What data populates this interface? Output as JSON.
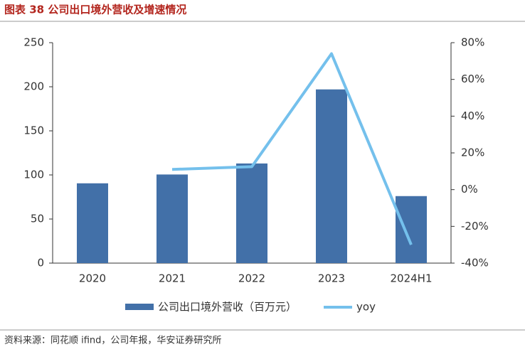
{
  "chart_data": {
    "type": "bar",
    "title": "图表 38 公司出口境外营收及增速情况",
    "source": "资料来源：同花顺 ifind，公司年报，华安证券研究所",
    "categories": [
      "2020",
      "2021",
      "2022",
      "2023",
      "2024H1"
    ],
    "series": [
      {
        "name": "公司出口境外营收（百万元）",
        "type": "bar",
        "color": "#4270a8",
        "values": [
          90.5,
          100.5,
          113,
          197,
          76
        ]
      },
      {
        "name": "yoy",
        "type": "line",
        "axis": "y2",
        "color": "#74c0ec",
        "values": [
          null,
          11,
          12.5,
          74,
          -30
        ]
      }
    ],
    "ylim": [
      0,
      250
    ],
    "yticks": [
      0,
      50,
      100,
      150,
      200,
      250
    ],
    "y2lim": [
      -40,
      80
    ],
    "y2ticks": [
      {
        "value": -40,
        "label": "-40%"
      },
      {
        "value": -20,
        "label": "-20%"
      },
      {
        "value": 0,
        "label": "0%"
      },
      {
        "value": 20,
        "label": "20%"
      },
      {
        "value": 40,
        "label": "40%"
      },
      {
        "value": 60,
        "label": "60%"
      },
      {
        "value": 80,
        "label": "80%"
      }
    ],
    "grid": false
  }
}
